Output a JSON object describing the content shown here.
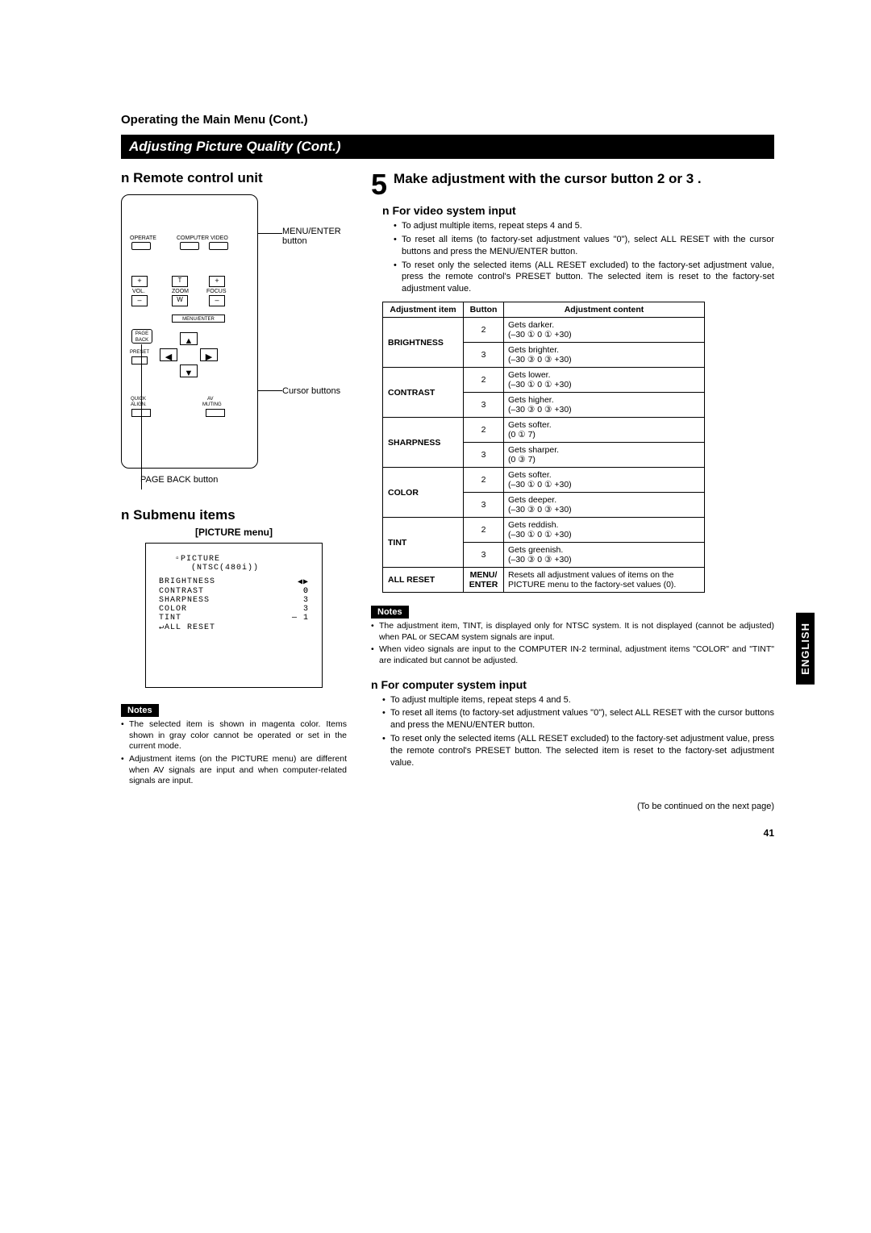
{
  "header": {
    "breadcrumb": "Operating the Main Menu (Cont.)",
    "bar_title": "Adjusting Picture Quality (Cont.)"
  },
  "left": {
    "remote_title": "n Remote control unit",
    "callout_menu": "MENU/ENTER button",
    "callout_cursor": "Cursor buttons",
    "page_back": "PAGE BACK button",
    "remote_labels": {
      "operate": "OPERATE",
      "computer": "COMPUTER",
      "video": "VIDEO",
      "vol": "VOL.",
      "zoom": "ZOOM",
      "focus": "FOCUS",
      "t": "T",
      "w": "W",
      "page": "PAGE",
      "back": "BACK",
      "menu_enter": "MENU/ENTER",
      "preset": "PRESET",
      "quick": "QUICK",
      "align": "ALIGN.",
      "av": "AV",
      "muting": "MUTING"
    },
    "submenu_title": "n Submenu items",
    "submenu_label": "[PICTURE menu]",
    "osd": {
      "title": "PICTURE",
      "signal": "(NTSC(480i))",
      "rows": [
        {
          "name": "BRIGHTNESS",
          "val": "0",
          "arrow": true
        },
        {
          "name": "CONTRAST",
          "val": "0"
        },
        {
          "name": "SHARPNESS",
          "val": "3"
        },
        {
          "name": "COLOR",
          "val": "3"
        },
        {
          "name": "TINT",
          "val": "—     1"
        },
        {
          "name": "ALL RESET",
          "val": "",
          "icon": true
        }
      ]
    },
    "notes_label": "Notes",
    "notes": [
      "The selected item is shown in magenta color. Items shown in gray color cannot be operated or set in the current mode.",
      "Adjustment items (on the PICTURE menu) are different when AV signals are input and when computer-related signals are input."
    ]
  },
  "right": {
    "step_num": "5",
    "step_text": "Make adjustment with the cursor button 2  or 3 .",
    "video_h": "n  For video system input",
    "video_bullets": [
      "To adjust multiple items, repeat steps 4 and 5.",
      "To reset all items (to factory-set adjustment values \"0\"), select ALL RESET with the cursor buttons and press the MENU/ENTER button.",
      "To reset only the selected items (ALL RESET excluded) to the factory-set adjustment value, press the remote control's PRESET button. The selected item is reset to the factory-set adjustment value."
    ],
    "table": {
      "headers": [
        "Adjustment item",
        "Button",
        "Adjustment content"
      ],
      "rows": [
        {
          "item": "BRIGHTNESS",
          "btn": "2",
          "content": "Gets darker.\n(–30 ① 0 ① +30)"
        },
        {
          "item": "",
          "btn": "3",
          "content": "Gets brighter.\n(–30 ③ 0 ③ +30)"
        },
        {
          "item": "CONTRAST",
          "btn": "2",
          "content": "Gets lower.\n(–30 ① 0 ① +30)"
        },
        {
          "item": "",
          "btn": "3",
          "content": "Gets higher.\n(–30 ③ 0 ③ +30)"
        },
        {
          "item": "SHARPNESS",
          "btn": "2",
          "content": "Gets softer.\n(0 ① 7)"
        },
        {
          "item": "",
          "btn": "3",
          "content": "Gets sharper.\n(0 ③ 7)"
        },
        {
          "item": "COLOR",
          "btn": "2",
          "content": "Gets softer.\n(–30 ① 0 ① +30)"
        },
        {
          "item": "",
          "btn": "3",
          "content": "Gets deeper.\n(–30 ③ 0 ③ +30)"
        },
        {
          "item": "TINT",
          "btn": "2",
          "content": "Gets reddish.\n(–30 ① 0 ① +30)"
        },
        {
          "item": "",
          "btn": "3",
          "content": "Gets greenish.\n(–30 ③ 0 ③ +30)"
        },
        {
          "item": "ALL RESET",
          "btn": "MENU/\nENTER",
          "content": "Resets all adjustment values of items on the PICTURE menu to the factory-set values (0)."
        }
      ]
    },
    "notes1_label": "Notes",
    "notes1": [
      "The adjustment item, TINT, is displayed only for NTSC system. It is not displayed (cannot be adjusted) when PAL or SECAM system signals are input.",
      "When video signals are input to the COMPUTER IN-2 terminal, adjustment items \"COLOR\" and \"TINT\" are indicated but cannot be adjusted."
    ],
    "comp_h": "n  For computer system input",
    "comp_bullets": [
      "To adjust multiple items, repeat steps 4 and 5.",
      "To reset all items (to factory-set adjustment values \"0\"), select ALL RESET with the cursor buttons and press the MENU/ENTER button.",
      "To reset only the selected items (ALL RESET excluded) to the factory-set adjustment value, press the remote control's PRESET button. The selected item is reset to the factory-set adjustment value."
    ],
    "continued": "(To be continued on the next page)"
  },
  "side_tab": "ENGLISH",
  "page_number": "41"
}
